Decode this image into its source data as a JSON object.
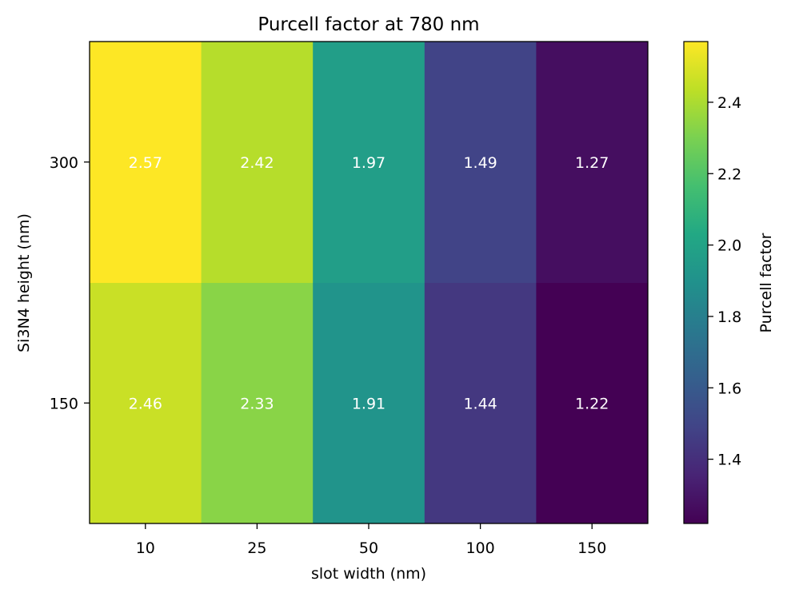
{
  "chart_data": {
    "type": "heatmap",
    "title": "Purcell factor at 780 nm",
    "xlabel": "slot width (nm)",
    "ylabel": "Si3N4 height (nm)",
    "x_categories": [
      "10",
      "25",
      "50",
      "100",
      "150"
    ],
    "y_categories": [
      "150",
      "300"
    ],
    "values": [
      [
        2.46,
        2.33,
        1.91,
        1.44,
        1.22
      ],
      [
        2.57,
        2.42,
        1.97,
        1.49,
        1.27
      ]
    ],
    "colorbar": {
      "label": "Purcell factor",
      "range": [
        1.22,
        2.57
      ],
      "ticks": [
        "1.4",
        "1.6",
        "1.8",
        "2.0",
        "2.2",
        "2.4"
      ],
      "colormap": "viridis"
    },
    "annotation_color": "#ffffff"
  }
}
